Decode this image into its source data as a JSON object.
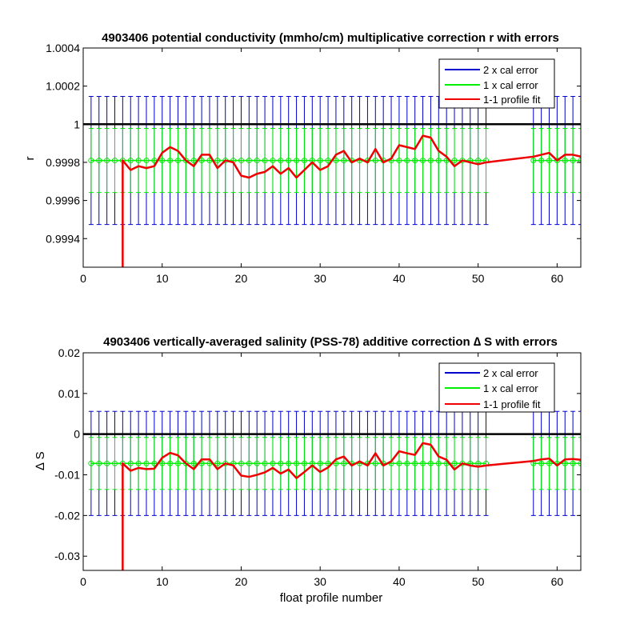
{
  "figure": {
    "xlabel": "float profile number",
    "legend_entries": [
      "2 x cal error",
      "1 x cal error",
      "1-1 profile fit"
    ],
    "legend_colors": [
      "#0000cc",
      "#00ee00",
      "#ee0000"
    ],
    "zero_line_color": "#000000",
    "legend_placement": "top-right"
  },
  "chart_data": [
    {
      "type": "line",
      "title": "4903406 potential conductivity (mmho/cm) multiplicative correction r with errors",
      "xlabel": "",
      "ylabel": "r",
      "xlim": [
        0,
        63
      ],
      "ylim": [
        0.99925,
        1.0004
      ],
      "xticks": [
        0,
        10,
        20,
        30,
        40,
        50,
        60
      ],
      "yticks": [
        0.9994,
        0.9996,
        0.9998,
        1,
        1.0002,
        1.0004
      ],
      "ytick_labels": [
        "0.9994",
        "0.9996",
        "0.9998",
        "1",
        "1.0002",
        "1.0004"
      ],
      "grid": false,
      "legend": "top-right",
      "reference_line": 1,
      "fit_level": 0.99981,
      "error_1x": 0.000168,
      "error_2x": 0.000336,
      "profiles": [
        1,
        2,
        3,
        4,
        5,
        6,
        7,
        8,
        9,
        10,
        11,
        12,
        13,
        14,
        15,
        16,
        17,
        18,
        19,
        20,
        21,
        22,
        23,
        24,
        25,
        26,
        27,
        28,
        29,
        30,
        31,
        32,
        33,
        34,
        35,
        36,
        37,
        38,
        39,
        40,
        41,
        42,
        43,
        44,
        45,
        46,
        47,
        48,
        49,
        50,
        51,
        57,
        58,
        59,
        60,
        61,
        62,
        63
      ],
      "series": [
        {
          "name": "1-1 profile fit",
          "x": [
            5,
            6,
            7,
            8,
            9,
            10,
            11,
            12,
            13,
            14,
            15,
            16,
            17,
            18,
            19,
            20,
            21,
            22,
            23,
            24,
            25,
            26,
            27,
            28,
            29,
            30,
            31,
            32,
            33,
            34,
            35,
            36,
            37,
            38,
            39,
            40,
            41,
            42,
            43,
            44,
            45,
            46,
            47,
            48,
            49,
            50,
            51,
            57,
            58,
            59,
            60,
            61,
            62,
            63
          ],
          "y": [
            0.99981,
            0.99976,
            0.99978,
            0.99977,
            0.99978,
            0.99985,
            0.99988,
            0.99986,
            0.99981,
            0.99978,
            0.99984,
            0.99984,
            0.99977,
            0.99981,
            0.9998,
            0.99973,
            0.99972,
            0.99974,
            0.99975,
            0.99978,
            0.99974,
            0.99977,
            0.99972,
            0.99976,
            0.9998,
            0.99976,
            0.99978,
            0.99984,
            0.99986,
            0.9998,
            0.99982,
            0.9998,
            0.99987,
            0.9998,
            0.99982,
            0.99989,
            0.99988,
            0.99987,
            0.99994,
            0.99993,
            0.99986,
            0.99983,
            0.99978,
            0.99981,
            0.9998,
            0.99979,
            0.9998,
            0.99983,
            0.99984,
            0.99985,
            0.99981,
            0.99984,
            0.99984,
            0.99983
          ],
          "drop_to_x": 5,
          "drop_to_y": 0.99925
        }
      ]
    },
    {
      "type": "line",
      "title": "4903406 vertically-averaged salinity (PSS-78) additive correction ∆ S with errors",
      "xlabel": "float profile number",
      "ylabel": "∆ S",
      "xlim": [
        0,
        63
      ],
      "ylim": [
        -0.0335,
        0.02
      ],
      "xticks": [
        0,
        10,
        20,
        30,
        40,
        50,
        60
      ],
      "yticks": [
        -0.03,
        -0.02,
        -0.01,
        0,
        0.01,
        0.02
      ],
      "ytick_labels": [
        "-0.03",
        "-0.02",
        "-0.01",
        "0",
        "0.01",
        "0.02"
      ],
      "grid": false,
      "legend": "top-right",
      "reference_line": 0,
      "fit_level": -0.0072,
      "error_1x": 0.0064,
      "error_2x": 0.0128,
      "profiles": [
        1,
        2,
        3,
        4,
        5,
        6,
        7,
        8,
        9,
        10,
        11,
        12,
        13,
        14,
        15,
        16,
        17,
        18,
        19,
        20,
        21,
        22,
        23,
        24,
        25,
        26,
        27,
        28,
        29,
        30,
        31,
        32,
        33,
        34,
        35,
        36,
        37,
        38,
        39,
        40,
        41,
        42,
        43,
        44,
        45,
        46,
        47,
        48,
        49,
        50,
        51,
        57,
        58,
        59,
        60,
        61,
        62,
        63
      ],
      "series": [
        {
          "name": "1-1 profile fit",
          "x": [
            5,
            6,
            7,
            8,
            9,
            10,
            11,
            12,
            13,
            14,
            15,
            16,
            17,
            18,
            19,
            20,
            21,
            22,
            23,
            24,
            25,
            26,
            27,
            28,
            29,
            30,
            31,
            32,
            33,
            34,
            35,
            36,
            37,
            38,
            39,
            40,
            41,
            42,
            43,
            44,
            45,
            46,
            47,
            48,
            49,
            50,
            51,
            57,
            58,
            59,
            60,
            61,
            62,
            63
          ],
          "y": [
            -0.0072,
            -0.009,
            -0.0083,
            -0.0086,
            -0.0085,
            -0.0058,
            -0.0046,
            -0.0052,
            -0.0072,
            -0.0086,
            -0.0062,
            -0.0062,
            -0.0086,
            -0.0072,
            -0.0077,
            -0.0102,
            -0.0105,
            -0.01,
            -0.0094,
            -0.0083,
            -0.0097,
            -0.0087,
            -0.0108,
            -0.0093,
            -0.0077,
            -0.0093,
            -0.0082,
            -0.0062,
            -0.0055,
            -0.0077,
            -0.0067,
            -0.0077,
            -0.0047,
            -0.0077,
            -0.0067,
            -0.0042,
            -0.0047,
            -0.0051,
            -0.0022,
            -0.0026,
            -0.0055,
            -0.0063,
            -0.0087,
            -0.0072,
            -0.0077,
            -0.008,
            -0.0077,
            -0.0066,
            -0.0062,
            -0.006,
            -0.0077,
            -0.0062,
            -0.0061,
            -0.0063
          ],
          "drop_to_x": 5,
          "drop_to_y": -0.0335
        }
      ]
    }
  ]
}
